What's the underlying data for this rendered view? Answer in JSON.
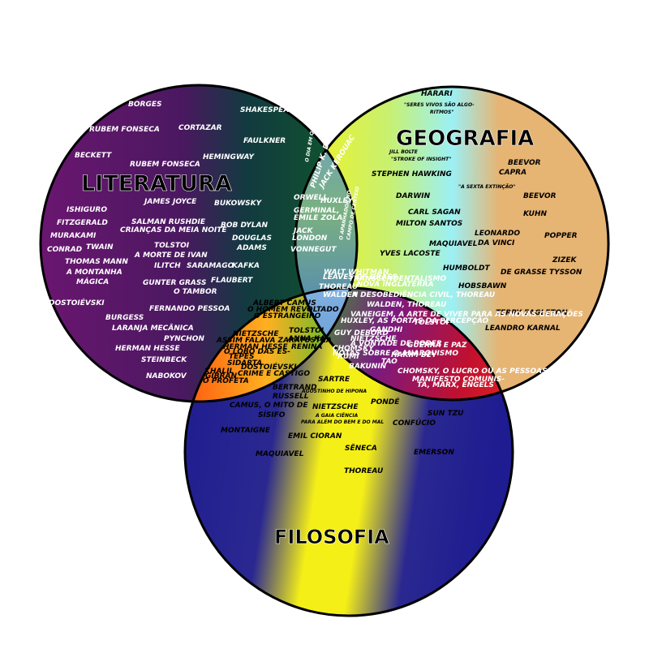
{
  "circles": {
    "literatura": {
      "title": "LITERATURA",
      "items": [
        "BORGES",
        "SHAKESPEARE",
        "RUBEM FONSECA",
        "CORTAZAR",
        "FAULKNER",
        "BECKETT",
        "RUBEM FONSECA",
        "HEMINGWAY",
        "ISHIGURO",
        "JAMES JOYCE",
        "BUKOWSKY",
        "FITZGERALD",
        "SALMAN RUSHDIE",
        "CRIANÇAS DA MEIA NOITE",
        "BOB DYLAN",
        "MURAKAMI",
        "DOUGLAS",
        "CONRAD",
        "TWAIN",
        "TOLSTOI",
        "ADAMS",
        "A MORTE DE IVAN",
        "THOMAS MANN",
        "ILITCH",
        "SARAMAGO",
        "KAFKA",
        "A MONTANHA",
        "MÁGICA",
        "GUNTER GRASS",
        "FLAUBERT",
        "O TAMBOR",
        "DOSTOIÉVSKI",
        "FERNANDO PESSOA",
        "BURGESS",
        "LARANJA MECÂNICA",
        "PYNCHON",
        "HERMAN HESSE",
        "STEINBECK",
        "NABOKOV"
      ]
    },
    "geografia": {
      "title": "GEOGRAFIA",
      "items": [
        "HARARI",
        "\"SERES VIVOS SÃO ALGO-",
        "RITMOS\"",
        "JILL BOLTE",
        "\"STROKE OF INSIGHT\"",
        "BEEVOR",
        "CAPRA",
        "STEPHEN HAWKING",
        "\"A SEXTA EXTINÇÃO\"",
        "DARWIN",
        "BEEVOR",
        "CARL SAGAN",
        "KUHN",
        "MILTON SANTOS",
        "LEONARDO",
        "POPPER",
        "DA VINCI",
        "MAQUIAVEL",
        "YVES LACOSTE",
        "ZIZEK",
        "HUMBOLDT",
        "DE GRASSE TYSSON",
        "HOBSBAWN",
        "TERRY EAGLETON",
        "LEANDRO KARNAL"
      ]
    },
    "filosofia": {
      "title": "FILOSOFIA",
      "items": [
        "BERTRAND",
        "SARTRE",
        "RUSSELL",
        "AGOSTINHO DE HIPONA",
        "PONDÉ",
        "CAMUS, O MITO DE",
        "SÍSIFO",
        "SUN TZU",
        "NIETZSCHE",
        "A GAIA CIÊNCIA",
        "CONFÚCIO",
        "MONTAIGNE",
        "PARA ALÉM DO BEM E DO MAL",
        "EMIL CIORAN",
        "MAQUIAVEL",
        "SÊNECA",
        "EMERSON",
        "THOREAU"
      ]
    }
  },
  "overlaps": {
    "lit_geo": [
      "PHILIP K. DICK",
      "O DIA EM QUE A TERRA",
      "JACK KEROUAC",
      "ORWELL",
      "HUXLEY",
      "GERMINAL,",
      "ÉMILE ZOLA",
      "JACK",
      "LONDON",
      "VONNEGUT",
      "O APANHADOR NO",
      "CAMPO DE CENTEIO",
      "WALT WHITMAN",
      "LEAVES OF GRASS"
    ],
    "center": [
      "THOREAU",
      "WALDEN"
    ],
    "lit_fil": [
      "ALBERT CAMUS",
      "O HOMEM REVOLTADO",
      "O ESTRANGEIRO",
      "NIETZSCHE",
      "ASSIM FALAVA ZARATUSTRA",
      "HERMAN HESSE",
      "O LOBO DAS ES-",
      "TEPES",
      "SIDARTA",
      "TOLSTOI",
      "ANNA KA-",
      "RENINA",
      "DOSTOIÉVSKI",
      "CRIME E CASTIGO",
      "KHALIL",
      "GIBRAN",
      "O PROFETA"
    ],
    "geo_fil": [
      "TRANSCENDENTALISMO",
      "NOVA INGLATERRA",
      "A DESOBEDIÊNCIA CIVIL, THOREAU",
      "WALDEN, THOREAU",
      "VANEIGEM, A ARTE DE VIVER PARA AS NOVAS GERAÇÕES",
      "TOLSTOI",
      "HUXLEY, AS PORTAS DA PERCEPÇÃO",
      "GANDHI",
      "GUY DEBORD",
      "NIETZSCHE",
      "A VONTADE DE PODER",
      "CHOMSKY",
      "NOTAS SOBRE O ANARQUISMO",
      "GUERRA E PAZ",
      "HAKIM BEY",
      "RUMI",
      "BAKUNIN",
      "TAO",
      "CHOMSKY, O LUCRO OU AS PESSOAS",
      "MANIFESTO COMUNIS-",
      "TA, MARX, ENGELS"
    ]
  },
  "colors": {
    "literatura_a": "#6a1670",
    "literatura_b": "#0f5a28",
    "geografia_a": "#f2f21a",
    "geografia_b": "#9cf0f5",
    "geografia_c": "#e6b473",
    "filosofia_a": "#1e1c90",
    "filosofia_b": "#f5ef18",
    "outline": "#000000"
  }
}
